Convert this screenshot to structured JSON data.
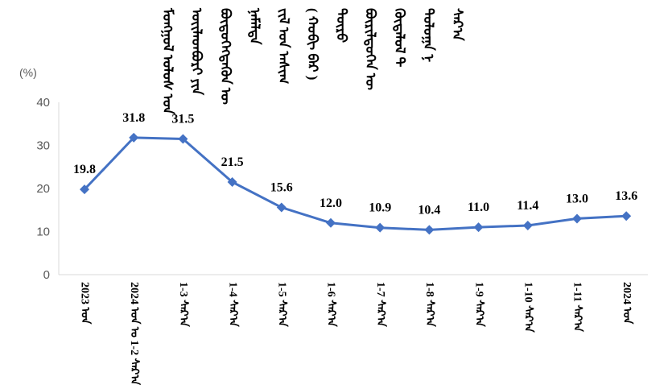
{
  "title_columns": [
    "ᠮᠣᠩᠭᠣᠯ ᠤᠯᠤᠰ ᠤᠨ",
    "ᠦᠢᠯᠡᠳᠪᠦᠷᠢ ᠶᠢᠨ",
    "ᠪᠦᠲᠦᠭᠡᠭᠳᠡᠬᠦᠨ ᠦ",
    "ᠨᠡᠮᠡᠯᠲᠡ",
    "ᠵᠢᠯ ᠤᠨ ᠠᠰᠢᠭ",
    "( ᠬᠤᠪᠢ ᠪᠠᠷ )",
    "ᠲᠥᠷᠦ",
    "ᠪᠦᠷᠢᠯᠳᠦᠭᠡᠨ ᠦ",
    "ᠬᠥᠳᠡᠯᠦᠯ ᠲ",
    "ᠳᠤᠯᠤᠭᠠ ᠨ",
    "ᠰᠠᠷ᠎ᠠ"
  ],
  "chart_data": {
    "type": "line",
    "ylabel": "(%)",
    "ylim": [
      0,
      40
    ],
    "yticks": [
      "0",
      "10",
      "20",
      "30",
      "40"
    ],
    "grid": false,
    "color": "#4472C4",
    "categories": [
      "2023 ᠣᠨ",
      "2024 ᠣᠨ ᠤ 1-2 ᠰᠠᠷ᠎ᠠ",
      "1-3 ᠰᠠᠷ᠎ᠠ",
      "1-4 ᠰᠠᠷ᠎ᠠ",
      "1-5 ᠰᠠᠷ᠎ᠠ",
      "1-6 ᠰᠠᠷ᠎ᠠ",
      "1-7 ᠰᠠᠷ᠎ᠠ",
      "1-8 ᠰᠠᠷ᠎ᠠ",
      "1-9 ᠰᠠᠷ᠎ᠠ",
      "1-10 ᠰᠠᠷ᠎ᠠ",
      "1-11 ᠰᠠᠷ᠎ᠠ",
      "2024 ᠣᠨ"
    ],
    "values": [
      19.8,
      31.8,
      31.5,
      21.5,
      15.6,
      12.0,
      10.9,
      10.4,
      11.0,
      11.4,
      13.0,
      13.6
    ],
    "data_labels": [
      "19.8",
      "31.8",
      "31.5",
      "21.5",
      "15.6",
      "12.0",
      "10.9",
      "10.4",
      "11.0",
      "11.4",
      "13.0",
      "13.6"
    ]
  }
}
